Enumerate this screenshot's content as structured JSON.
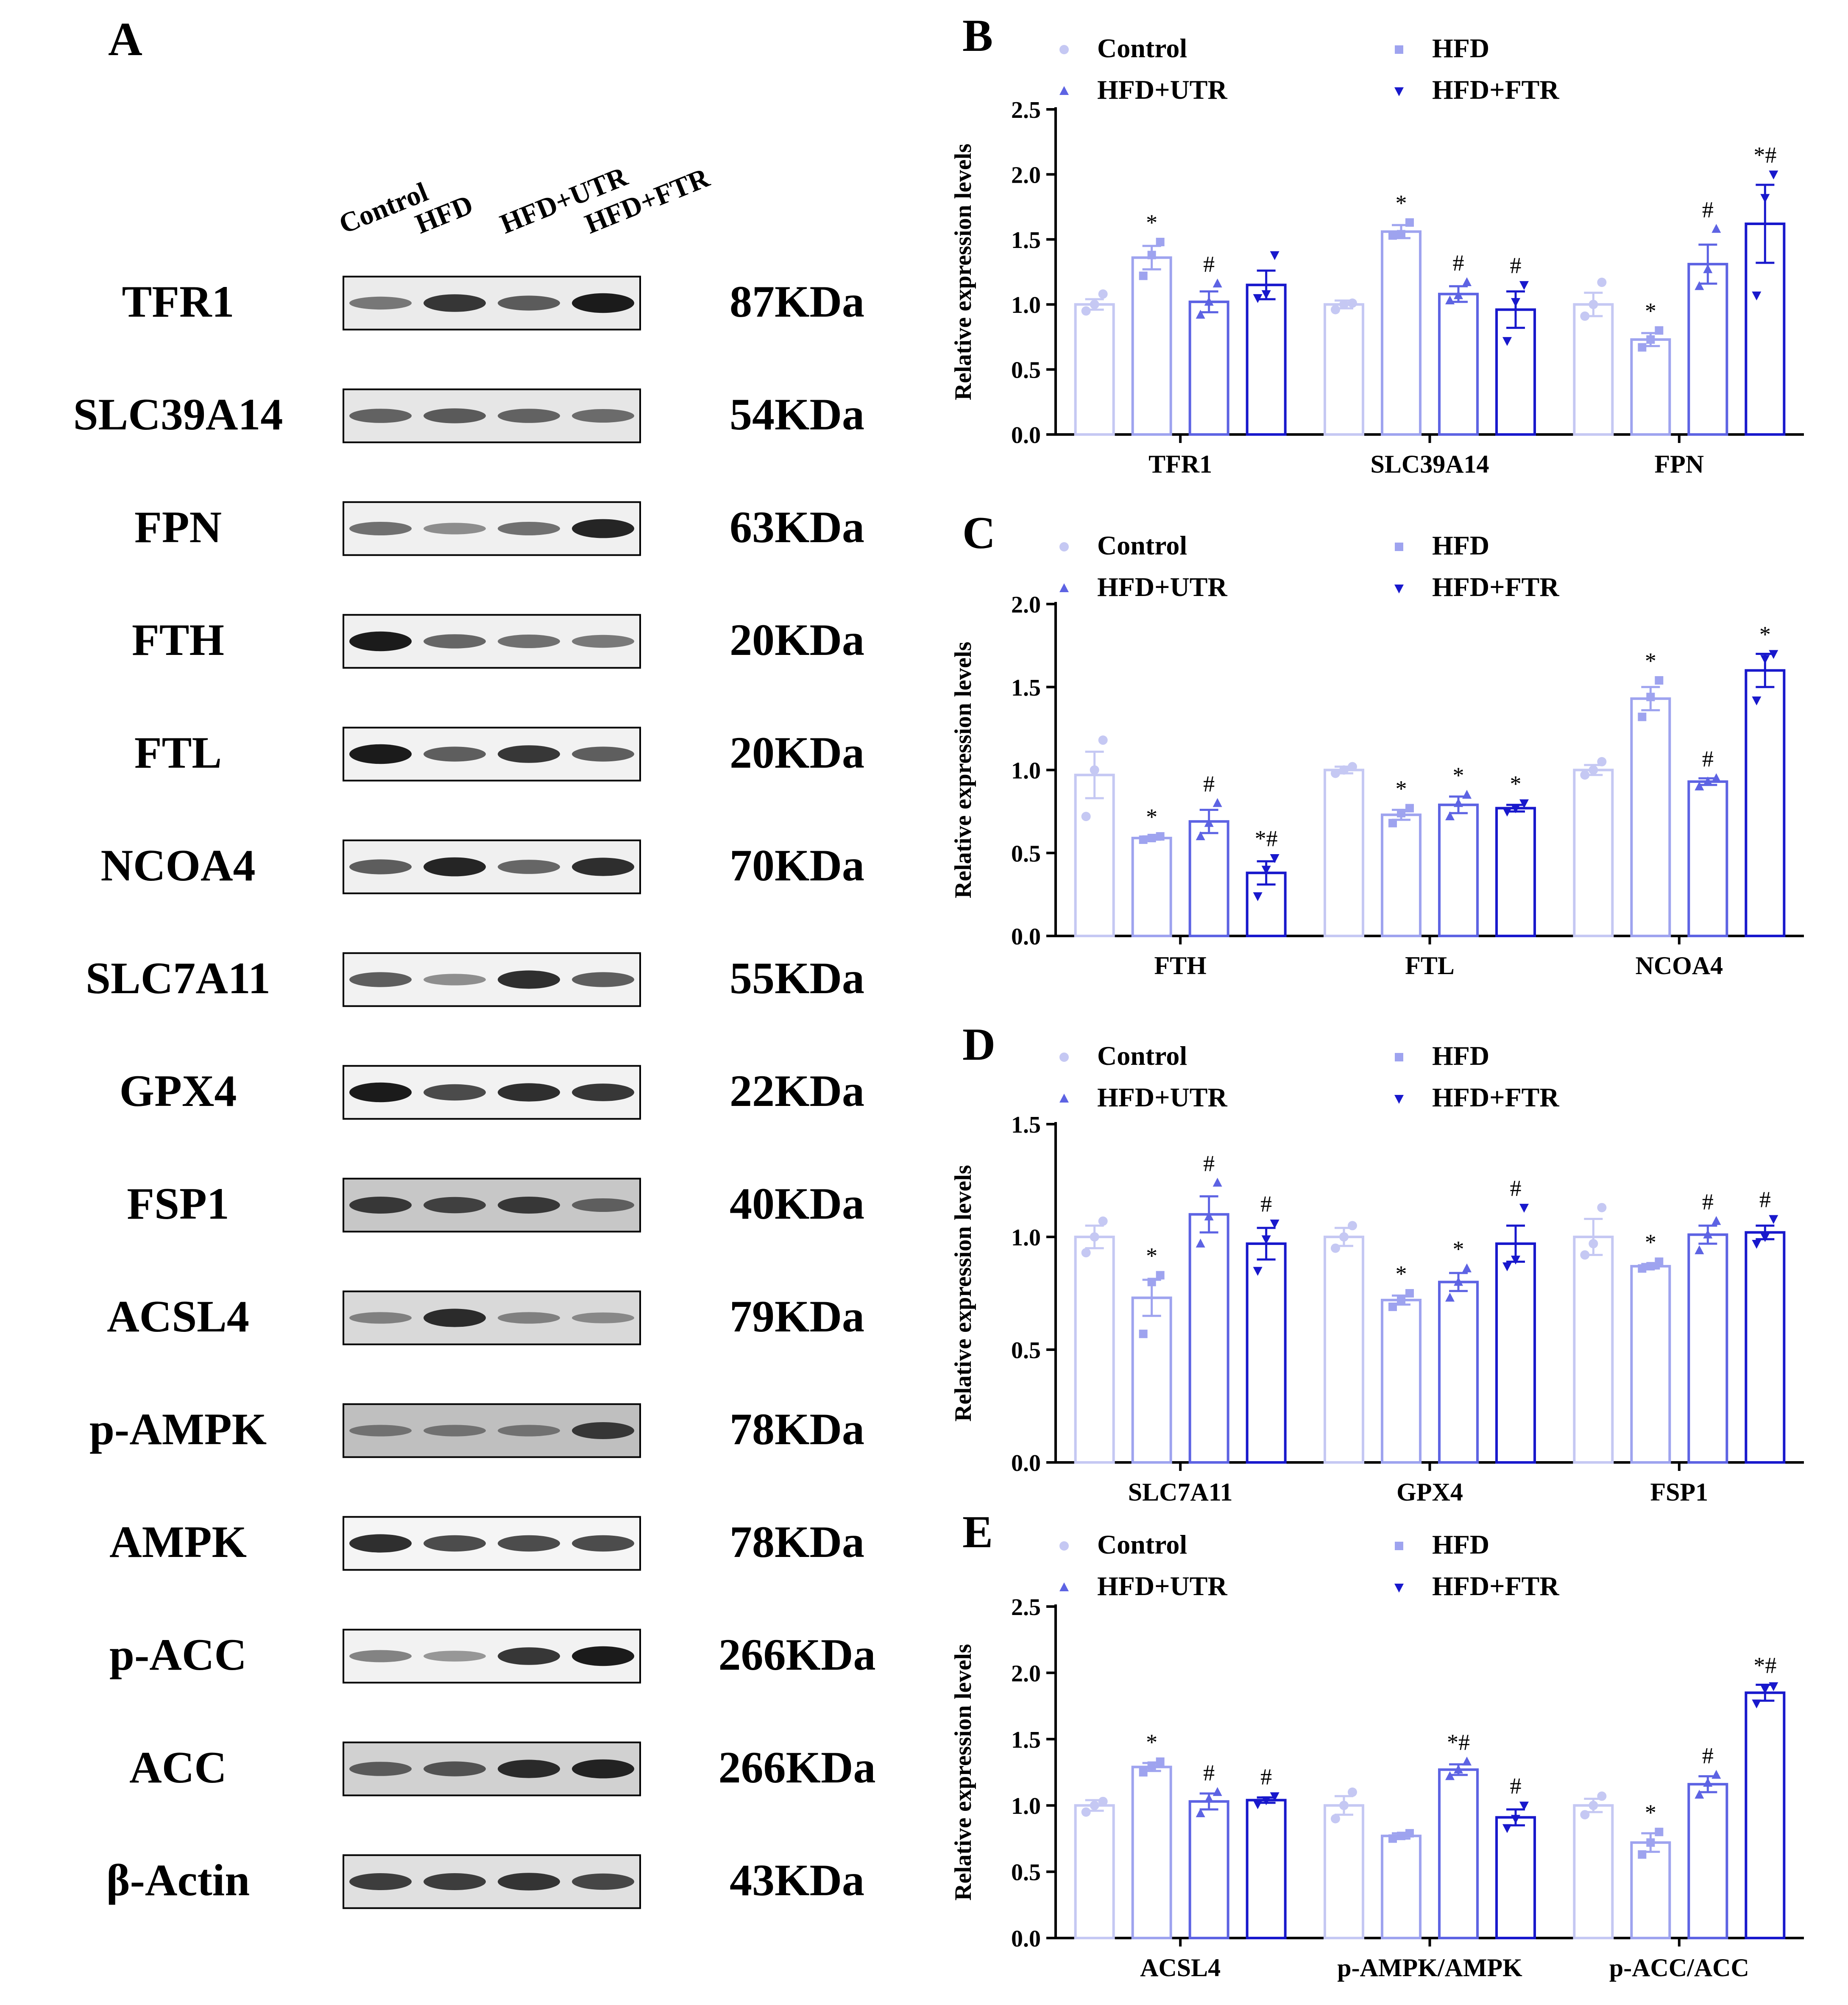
{
  "panel_a": {
    "label": "A",
    "lanes": [
      "Control",
      "HFD",
      "HFD+UTR",
      "HFD+FTR"
    ],
    "blots": [
      {
        "protein": "TFR1",
        "size": "87KDa",
        "bands": [
          0.45,
          0.8,
          0.6,
          0.95
        ],
        "bg": 0.08
      },
      {
        "protein": "SLC39A14",
        "size": "54KDa",
        "bands": [
          0.55,
          0.6,
          0.55,
          0.5
        ],
        "bg": 0.1
      },
      {
        "protein": "FPN",
        "size": "63KDa",
        "bands": [
          0.5,
          0.35,
          0.5,
          0.9
        ],
        "bg": 0.06
      },
      {
        "protein": "FTH",
        "size": "20KDa",
        "bands": [
          0.95,
          0.55,
          0.5,
          0.45
        ],
        "bg": 0.06
      },
      {
        "protein": "FTL",
        "size": "20KDa",
        "bands": [
          0.95,
          0.6,
          0.8,
          0.6
        ],
        "bg": 0.05
      },
      {
        "protein": "NCOA4",
        "size": "70KDa",
        "bands": [
          0.6,
          0.9,
          0.55,
          0.85
        ],
        "bg": 0.06
      },
      {
        "protein": "SLC7A11",
        "size": "55KDa",
        "bands": [
          0.6,
          0.35,
          0.85,
          0.6
        ],
        "bg": 0.05
      },
      {
        "protein": "GPX4",
        "size": "22KDa",
        "bands": [
          0.95,
          0.7,
          0.85,
          0.8
        ],
        "bg": 0.05
      },
      {
        "protein": "FSP1",
        "size": "40KDa",
        "bands": [
          0.75,
          0.7,
          0.75,
          0.5
        ],
        "bg": 0.22
      },
      {
        "protein": "ACSL4",
        "size": "79KDa",
        "bands": [
          0.35,
          0.85,
          0.35,
          0.3
        ],
        "bg": 0.15
      },
      {
        "protein": "p-AMPK",
        "size": "78KDa",
        "bands": [
          0.35,
          0.35,
          0.35,
          0.75
        ],
        "bg": 0.25
      },
      {
        "protein": "AMPK",
        "size": "78KDa",
        "bands": [
          0.85,
          0.7,
          0.7,
          0.7
        ],
        "bg": 0.04
      },
      {
        "protein": "p-ACC",
        "size": "266KDa",
        "bands": [
          0.4,
          0.3,
          0.8,
          0.95
        ],
        "bg": 0.05
      },
      {
        "protein": "ACC",
        "size": "266KDa",
        "bands": [
          0.55,
          0.6,
          0.85,
          0.9
        ],
        "bg": 0.18
      },
      {
        "protein": "β-Actin",
        "size": "43KDa",
        "bands": [
          0.75,
          0.75,
          0.8,
          0.7
        ],
        "bg": 0.12
      }
    ]
  },
  "colors": {
    "Control": "#c5c8f3",
    "HFD": "#9ea3ef",
    "HFD+UTR": "#5d63e3",
    "HFD+FTR": "#1818cc"
  },
  "chart_data": [
    {
      "panel": "B",
      "type": "bar",
      "ylabel": "Relative expression levels",
      "ylim": [
        0,
        2.5
      ],
      "yticks": [
        "0.0",
        "0.5",
        "1.0",
        "1.5",
        "2.0",
        "2.5"
      ],
      "categories": [
        "TFR1",
        "SLC39A14",
        "FPN"
      ],
      "series": [
        {
          "name": "Control",
          "marker": "circle",
          "values": [
            1.0,
            1.0,
            1.0
          ],
          "sem": [
            0.04,
            0.03,
            0.09
          ],
          "points": [
            [
              0.95,
              1.0,
              1.08
            ],
            [
              0.96,
              1.0,
              1.01
            ],
            [
              0.91,
              1.0,
              1.17
            ]
          ],
          "sig": [
            "",
            "",
            ""
          ]
        },
        {
          "name": "HFD",
          "marker": "square",
          "values": [
            1.36,
            1.56,
            0.73
          ],
          "sem": [
            0.09,
            0.05,
            0.05
          ],
          "points": [
            [
              1.22,
              1.38,
              1.48
            ],
            [
              1.53,
              1.54,
              1.63
            ],
            [
              0.67,
              0.73,
              0.8
            ]
          ],
          "sig": [
            "*",
            "*",
            "*"
          ]
        },
        {
          "name": "HFD+UTR",
          "marker": "triangle-up",
          "values": [
            1.02,
            1.08,
            1.31
          ],
          "sem": [
            0.08,
            0.06,
            0.15
          ],
          "points": [
            [
              0.92,
              1.02,
              1.16
            ],
            [
              1.03,
              1.07,
              1.17
            ],
            [
              1.14,
              1.27,
              1.58
            ]
          ],
          "sig": [
            "#",
            "#",
            "#"
          ]
        },
        {
          "name": "HFD+FTR",
          "marker": "triangle-down",
          "values": [
            1.15,
            0.96,
            1.62
          ],
          "sem": [
            0.11,
            0.14,
            0.3
          ],
          "points": [
            [
              1.05,
              1.08,
              1.38
            ],
            [
              0.72,
              1.02,
              1.15
            ],
            [
              1.07,
              1.82,
              2.0
            ]
          ],
          "sig": [
            "",
            "#",
            "*#"
          ]
        }
      ]
    },
    {
      "panel": "C",
      "type": "bar",
      "ylabel": "Relative expression levels",
      "ylim": [
        0,
        2.0
      ],
      "yticks": [
        "0.0",
        "0.5",
        "1.0",
        "1.5",
        "2.0"
      ],
      "categories": [
        "FTH",
        "FTL",
        "NCOA4"
      ],
      "series": [
        {
          "name": "Control",
          "marker": "circle",
          "values": [
            0.97,
            1.0,
            1.0
          ],
          "sem": [
            0.14,
            0.02,
            0.03
          ],
          "points": [
            [
              0.72,
              1.0,
              1.18
            ],
            [
              0.98,
              1.0,
              1.02
            ],
            [
              0.97,
              1.0,
              1.05
            ]
          ],
          "sig": [
            "",
            "",
            ""
          ]
        },
        {
          "name": "HFD",
          "marker": "square",
          "values": [
            0.59,
            0.73,
            1.43
          ],
          "sem": [
            0.01,
            0.03,
            0.07
          ],
          "points": [
            [
              0.58,
              0.59,
              0.6
            ],
            [
              0.68,
              0.74,
              0.77
            ],
            [
              1.32,
              1.44,
              1.54
            ]
          ],
          "sig": [
            "*",
            "*",
            "*"
          ]
        },
        {
          "name": "HFD+UTR",
          "marker": "triangle-up",
          "values": [
            0.69,
            0.79,
            0.93
          ],
          "sem": [
            0.07,
            0.05,
            0.02
          ],
          "points": [
            [
              0.6,
              0.68,
              0.8
            ],
            [
              0.72,
              0.8,
              0.85
            ],
            [
              0.9,
              0.93,
              0.95
            ]
          ],
          "sig": [
            "#",
            "*",
            "#"
          ]
        },
        {
          "name": "HFD+FTR",
          "marker": "triangle-down",
          "values": [
            0.38,
            0.77,
            1.6
          ],
          "sem": [
            0.07,
            0.02,
            0.1
          ],
          "points": [
            [
              0.24,
              0.4,
              0.47
            ],
            [
              0.75,
              0.77,
              0.8
            ],
            [
              1.42,
              1.67,
              1.7
            ]
          ],
          "sig": [
            "*#",
            "*",
            "*"
          ]
        }
      ]
    },
    {
      "panel": "D",
      "type": "bar",
      "ylabel": "Relative expression levels",
      "ylim": [
        0,
        1.5
      ],
      "yticks": [
        "0.0",
        "0.5",
        "1.0",
        "1.5"
      ],
      "categories": [
        "SLC7A11",
        "GPX4",
        "FSP1"
      ],
      "series": [
        {
          "name": "Control",
          "marker": "circle",
          "values": [
            1.0,
            1.0,
            1.0
          ],
          "sem": [
            0.05,
            0.04,
            0.08
          ],
          "points": [
            [
              0.93,
              1.0,
              1.07
            ],
            [
              0.95,
              1.0,
              1.05
            ],
            [
              0.92,
              0.97,
              1.13
            ]
          ],
          "sig": [
            "",
            "",
            ""
          ]
        },
        {
          "name": "HFD",
          "marker": "square",
          "values": [
            0.73,
            0.72,
            0.87
          ],
          "sem": [
            0.08,
            0.02,
            0.01
          ],
          "points": [
            [
              0.57,
              0.8,
              0.83
            ],
            [
              0.69,
              0.72,
              0.75
            ],
            [
              0.86,
              0.87,
              0.89
            ]
          ],
          "sig": [
            "*",
            "*",
            "*"
          ]
        },
        {
          "name": "HFD+UTR",
          "marker": "triangle-up",
          "values": [
            1.1,
            0.8,
            1.01
          ],
          "sem": [
            0.08,
            0.04,
            0.04
          ],
          "points": [
            [
              0.97,
              1.09,
              1.24
            ],
            [
              0.73,
              0.8,
              0.86
            ],
            [
              0.94,
              1.01,
              1.07
            ]
          ],
          "sig": [
            "#",
            "*",
            "#"
          ]
        },
        {
          "name": "HFD+FTR",
          "marker": "triangle-down",
          "values": [
            0.97,
            0.97,
            1.02
          ],
          "sem": [
            0.07,
            0.08,
            0.03
          ],
          "points": [
            [
              0.85,
              0.99,
              1.06
            ],
            [
              0.87,
              0.9,
              1.13
            ],
            [
              0.97,
              1.0,
              1.08
            ]
          ],
          "sig": [
            "#",
            "#",
            "#"
          ]
        }
      ]
    },
    {
      "panel": "E",
      "type": "bar",
      "ylabel": "Relative expression levels",
      "ylim": [
        0,
        2.5
      ],
      "yticks": [
        "0.0",
        "0.5",
        "1.0",
        "1.5",
        "2.0",
        "2.5"
      ],
      "categories": [
        "ACSL4",
        "p-AMPK/AMPK",
        "p-ACC/ACC"
      ],
      "series": [
        {
          "name": "Control",
          "marker": "circle",
          "values": [
            1.0,
            1.0,
            1.0
          ],
          "sem": [
            0.04,
            0.07,
            0.05
          ],
          "points": [
            [
              0.95,
              1.0,
              1.03
            ],
            [
              0.9,
              1.0,
              1.1
            ],
            [
              0.93,
              1.0,
              1.07
            ]
          ],
          "sig": [
            "",
            "",
            ""
          ]
        },
        {
          "name": "HFD",
          "marker": "square",
          "values": [
            1.29,
            0.77,
            0.72
          ],
          "sem": [
            0.03,
            0.02,
            0.07
          ],
          "points": [
            [
              1.25,
              1.3,
              1.33
            ],
            [
              0.75,
              0.77,
              0.79
            ],
            [
              0.63,
              0.72,
              0.8
            ]
          ],
          "sig": [
            "*",
            "",
            "*"
          ]
        },
        {
          "name": "HFD+UTR",
          "marker": "triangle-up",
          "values": [
            1.03,
            1.27,
            1.16
          ],
          "sem": [
            0.06,
            0.04,
            0.06
          ],
          "points": [
            [
              0.94,
              1.05,
              1.1
            ],
            [
              1.22,
              1.27,
              1.33
            ],
            [
              1.08,
              1.17,
              1.23
            ]
          ],
          "sig": [
            "#",
            "*#",
            "#"
          ]
        },
        {
          "name": "HFD+FTR",
          "marker": "triangle-down",
          "values": [
            1.04,
            0.91,
            1.85
          ],
          "sem": [
            0.02,
            0.06,
            0.06
          ],
          "points": [
            [
              1.01,
              1.04,
              1.07
            ],
            [
              0.83,
              0.9,
              1.0
            ],
            [
              1.77,
              1.88,
              1.9
            ]
          ],
          "sig": [
            "#",
            "#",
            "*#"
          ]
        }
      ]
    }
  ]
}
